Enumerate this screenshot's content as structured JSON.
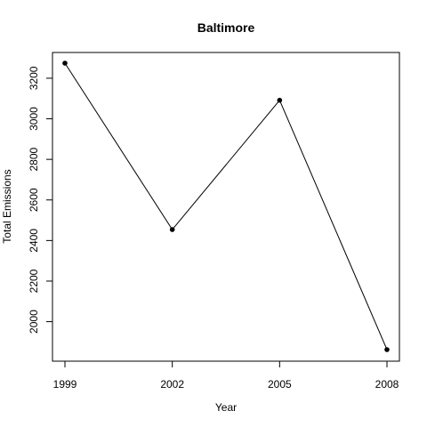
{
  "chart_data": {
    "type": "line",
    "title": "Baltimore",
    "xlabel": "Year",
    "ylabel": "Total Emissions",
    "x": [
      1999,
      2002,
      2005,
      2008
    ],
    "series": [
      {
        "values": [
          3274.2,
          2453.9,
          3091.4,
          1862.3
        ]
      }
    ],
    "xticks": [
      1999,
      2002,
      2005,
      2008
    ],
    "yticks": [
      2000,
      2200,
      2400,
      2600,
      2800,
      3000,
      3200
    ],
    "xlim": [
      1999,
      2008
    ],
    "ylim": [
      1862.3,
      3274.2
    ],
    "grid": false,
    "legend": "none",
    "colors": {
      "line": "#000000",
      "points": "#000000"
    }
  }
}
